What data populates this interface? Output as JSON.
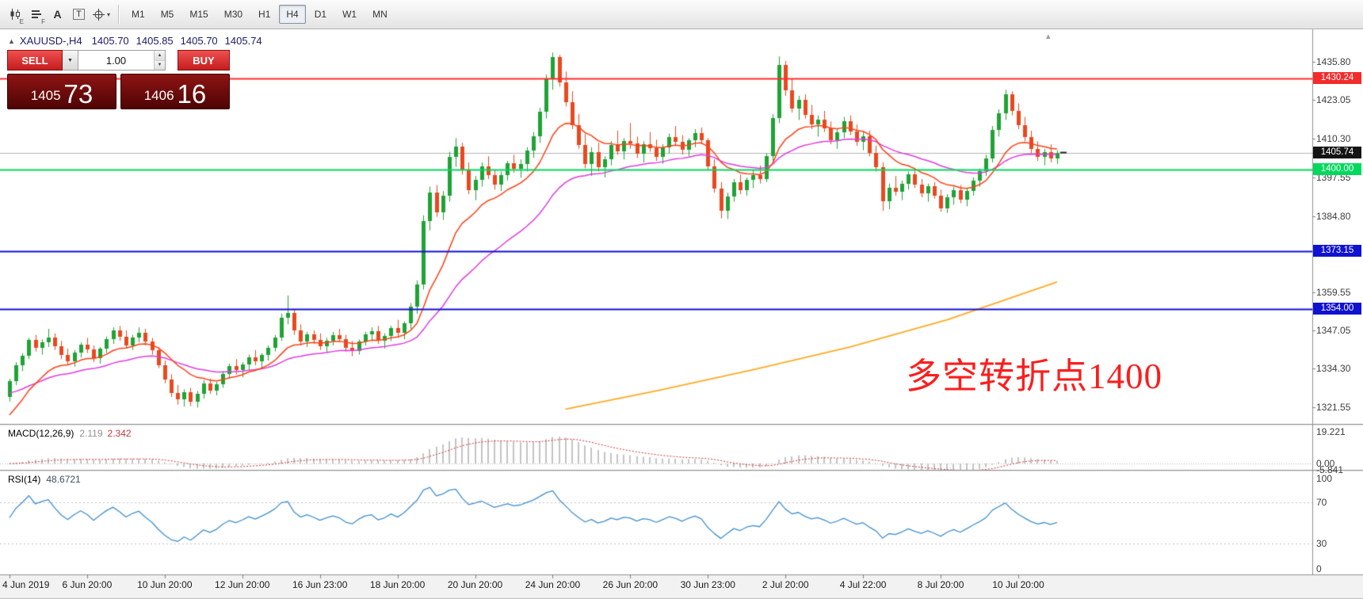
{
  "toolbar": {
    "icon_buttons": [
      {
        "name": "candlestick-chart-icon",
        "badge": "E"
      },
      {
        "name": "chart-list-icon",
        "badge": "F"
      },
      {
        "name": "text-annotation-icon",
        "glyph": "A"
      },
      {
        "name": "textbox-tool-icon",
        "glyph": "T"
      },
      {
        "name": "crosshair-tool-icon",
        "caret": "▾"
      }
    ],
    "timeframes": [
      "M1",
      "M5",
      "M15",
      "M30",
      "H1",
      "H4",
      "D1",
      "W1",
      "MN"
    ],
    "active_timeframe": "H4"
  },
  "chart_header": {
    "collapse_icon": "▲",
    "symbol_period": "XAUUSD-,H4",
    "open": "1405.70",
    "high": "1405.85",
    "low": "1405.70",
    "close": "1405.74",
    "scroll_indicator": "▴"
  },
  "one_click": {
    "sell_label": "SELL",
    "buy_label": "BUY",
    "volume": "1.00",
    "dropdown_icon": "▼",
    "spinner_up": "▲",
    "spinner_down": "▼",
    "sell_big": "1405",
    "sell_pips": "73",
    "buy_big": "1406",
    "buy_pips": "16"
  },
  "price_axis": {
    "labels": [
      {
        "text": "1435.80",
        "price": 1435.8
      },
      {
        "text": "1423.05",
        "price": 1423.05
      },
      {
        "text": "1410.30",
        "price": 1410.3
      },
      {
        "text": "1397.55",
        "price": 1397.55
      },
      {
        "text": "1384.80",
        "price": 1384.8
      },
      {
        "text": "1359.55",
        "price": 1359.55
      },
      {
        "text": "1347.05",
        "price": 1347.05
      },
      {
        "text": "1334.30",
        "price": 1334.3
      },
      {
        "text": "1321.55",
        "price": 1321.55
      }
    ],
    "badges": [
      {
        "text": "1430.24",
        "price": 1430.24,
        "bg": "#f32b2b",
        "fg": "#ffffff"
      },
      {
        "text": "1405.74",
        "price": 1405.74,
        "bg": "#141414",
        "fg": "#ffffff"
      },
      {
        "text": "1400.00",
        "price": 1400.0,
        "bg": "#00d95c",
        "fg": "#ffffff"
      },
      {
        "text": "1373.15",
        "price": 1373.15,
        "bg": "#1111d2",
        "fg": "#ffffff"
      },
      {
        "text": "1354.00",
        "price": 1354.0,
        "bg": "#1111d2",
        "fg": "#ffffff"
      }
    ]
  },
  "indicators": {
    "macd": {
      "name": "MACD(12,26,9)",
      "value_main": "2.119",
      "value_signal": "2.342",
      "scale": [
        {
          "text": "19.221",
          "value": 19.221
        },
        {
          "text": "0.00",
          "value": 0
        },
        {
          "text": "-5.841",
          "value": -5.841
        }
      ]
    },
    "rsi": {
      "name": "RSI(14)",
      "value": "48.6721",
      "scale": [
        {
          "text": "100",
          "value": 100
        },
        {
          "text": "70",
          "value": 70
        },
        {
          "text": "30",
          "value": 30
        },
        {
          "text": "0",
          "value": 0
        }
      ],
      "levels": [
        70,
        30
      ]
    }
  },
  "annotation": {
    "text": "多空转折点1400",
    "color": "#fa1e1e"
  },
  "time_axis": {
    "labels": [
      "4 Jun 2019",
      "6 Jun 20:00",
      "10 Jun 20:00",
      "12 Jun 20:00",
      "16 Jun 23:00",
      "18 Jun 20:00",
      "20 Jun 20:00",
      "24 Jun 20:00",
      "26 Jun 20:00",
      "30 Jun 23:00",
      "2 Jul 20:00",
      "4 Jul 22:00",
      "8 Jul 20:00",
      "10 Jul 20:00"
    ],
    "bar_step": 12
  },
  "chart_data": {
    "type": "candlestick",
    "symbol": "XAUUSD-",
    "period": "H4",
    "price_top": 1446.46,
    "price_bottom": 1316.1,
    "bull_color": "#1fa335",
    "bear_color": "#e8491f",
    "bid": 1405.74,
    "bid_line_color": "#b4b4b4",
    "hlines": [
      {
        "price": 1430.24,
        "color": "#ff2d2d",
        "width": 2
      },
      {
        "price": 1400.0,
        "color": "#00d95c",
        "width": 2
      },
      {
        "price": 1373.15,
        "color": "#1111d2",
        "width": 2
      },
      {
        "price": 1354.0,
        "color": "#1111d2",
        "width": 2
      }
    ],
    "moving_averages": [
      {
        "name": "ma-medium",
        "color": "#e03ce0",
        "period": 30,
        "seed": 1326
      },
      {
        "name": "ma-fast",
        "color": "#ff4016",
        "period": 12,
        "seed": 1317
      }
    ],
    "ma_slow": {
      "name": "ma-slow",
      "color": "#ffaa22",
      "points": [
        [
          86,
          1321.0
        ],
        [
          100,
          1327.0
        ],
        [
          115,
          1334.0
        ],
        [
          130,
          1341.5
        ],
        [
          145,
          1350.5
        ],
        [
          162,
          1363.0
        ]
      ]
    },
    "macd_colors": {
      "histogram": "#c4c4c4",
      "signal": "#d23333"
    },
    "rsi_color": "#3f8fd0",
    "candles": [
      [
        1325.0,
        1331.0,
        1323.5,
        1330.2
      ],
      [
        1330.2,
        1336.5,
        1329.0,
        1335.4
      ],
      [
        1335.4,
        1339.5,
        1333.5,
        1338.6
      ],
      [
        1338.6,
        1344.5,
        1337.5,
        1343.8
      ],
      [
        1343.8,
        1345.5,
        1340.0,
        1341.2
      ],
      [
        1341.2,
        1344.0,
        1339.0,
        1343.1
      ],
      [
        1343.1,
        1347.5,
        1341.5,
        1344.6
      ],
      [
        1344.6,
        1346.0,
        1340.5,
        1341.7
      ],
      [
        1341.7,
        1343.5,
        1337.5,
        1338.9
      ],
      [
        1338.9,
        1341.0,
        1335.5,
        1336.8
      ],
      [
        1336.8,
        1340.5,
        1335.0,
        1339.7
      ],
      [
        1339.7,
        1343.0,
        1338.0,
        1342.2
      ],
      [
        1342.2,
        1344.5,
        1339.5,
        1340.6
      ],
      [
        1340.6,
        1342.0,
        1336.5,
        1337.8
      ],
      [
        1337.8,
        1341.5,
        1336.0,
        1340.9
      ],
      [
        1340.9,
        1345.0,
        1339.5,
        1344.2
      ],
      [
        1344.2,
        1348.0,
        1342.5,
        1346.9
      ],
      [
        1346.9,
        1348.5,
        1343.5,
        1344.8
      ],
      [
        1344.8,
        1347.0,
        1341.0,
        1342.1
      ],
      [
        1342.1,
        1345.5,
        1340.5,
        1344.6
      ],
      [
        1344.6,
        1348.0,
        1343.0,
        1346.3
      ],
      [
        1346.3,
        1347.5,
        1342.0,
        1343.2
      ],
      [
        1343.2,
        1344.5,
        1339.0,
        1340.4
      ],
      [
        1340.4,
        1341.5,
        1334.5,
        1335.6
      ],
      [
        1335.6,
        1337.0,
        1329.5,
        1330.7
      ],
      [
        1330.7,
        1332.5,
        1325.0,
        1326.2
      ],
      [
        1326.2,
        1329.0,
        1322.5,
        1324.1
      ],
      [
        1324.1,
        1327.5,
        1321.8,
        1326.6
      ],
      [
        1326.6,
        1328.0,
        1322.0,
        1323.3
      ],
      [
        1323.3,
        1327.0,
        1321.5,
        1326.1
      ],
      [
        1326.1,
        1330.5,
        1324.5,
        1329.4
      ],
      [
        1329.4,
        1331.0,
        1326.0,
        1327.2
      ],
      [
        1327.2,
        1330.0,
        1325.5,
        1329.1
      ],
      [
        1329.1,
        1333.5,
        1328.0,
        1332.6
      ],
      [
        1332.6,
        1336.0,
        1331.0,
        1335.2
      ],
      [
        1335.2,
        1337.5,
        1332.5,
        1333.8
      ],
      [
        1333.8,
        1336.5,
        1331.5,
        1335.7
      ],
      [
        1335.7,
        1339.0,
        1334.0,
        1338.1
      ],
      [
        1338.1,
        1340.5,
        1335.5,
        1336.7
      ],
      [
        1336.7,
        1339.5,
        1334.5,
        1338.8
      ],
      [
        1338.8,
        1342.0,
        1337.0,
        1341.3
      ],
      [
        1341.3,
        1345.5,
        1340.0,
        1344.7
      ],
      [
        1344.7,
        1352.5,
        1343.5,
        1351.2
      ],
      [
        1351.2,
        1358.5,
        1349.0,
        1352.8
      ],
      [
        1352.8,
        1354.0,
        1345.5,
        1346.9
      ],
      [
        1346.9,
        1349.0,
        1342.0,
        1343.4
      ],
      [
        1343.4,
        1346.5,
        1341.5,
        1345.6
      ],
      [
        1345.6,
        1347.0,
        1342.5,
        1343.9
      ],
      [
        1343.9,
        1346.0,
        1340.5,
        1341.8
      ],
      [
        1341.8,
        1344.5,
        1339.5,
        1343.6
      ],
      [
        1343.6,
        1346.5,
        1342.0,
        1345.3
      ],
      [
        1345.3,
        1347.5,
        1343.0,
        1344.1
      ],
      [
        1344.1,
        1345.5,
        1340.0,
        1341.3
      ],
      [
        1341.3,
        1343.5,
        1338.5,
        1340.2
      ],
      [
        1340.2,
        1344.0,
        1339.0,
        1343.4
      ],
      [
        1343.4,
        1346.5,
        1342.0,
        1345.8
      ],
      [
        1345.8,
        1348.0,
        1343.5,
        1346.6
      ],
      [
        1346.6,
        1348.5,
        1342.5,
        1343.7
      ],
      [
        1343.7,
        1346.0,
        1341.0,
        1345.1
      ],
      [
        1345.1,
        1348.5,
        1343.5,
        1347.9
      ],
      [
        1347.9,
        1350.5,
        1344.5,
        1346.2
      ],
      [
        1346.2,
        1350.0,
        1344.0,
        1349.3
      ],
      [
        1349.3,
        1356.0,
        1347.5,
        1354.9
      ],
      [
        1354.9,
        1363.5,
        1352.5,
        1362.1
      ],
      [
        1362.1,
        1385.0,
        1360.5,
        1383.2
      ],
      [
        1383.2,
        1394.5,
        1380.0,
        1392.6
      ],
      [
        1392.6,
        1395.0,
        1384.5,
        1386.1
      ],
      [
        1386.1,
        1393.0,
        1383.5,
        1391.4
      ],
      [
        1391.4,
        1406.0,
        1389.5,
        1404.2
      ],
      [
        1404.2,
        1410.5,
        1401.0,
        1407.8
      ],
      [
        1407.8,
        1409.0,
        1398.5,
        1399.9
      ],
      [
        1399.9,
        1402.5,
        1392.0,
        1393.3
      ],
      [
        1393.3,
        1398.0,
        1390.0,
        1396.7
      ],
      [
        1396.7,
        1402.5,
        1394.5,
        1401.3
      ],
      [
        1401.3,
        1404.5,
        1397.0,
        1398.2
      ],
      [
        1398.2,
        1400.0,
        1393.5,
        1395.1
      ],
      [
        1395.1,
        1399.5,
        1393.0,
        1398.4
      ],
      [
        1398.4,
        1403.0,
        1396.5,
        1402.2
      ],
      [
        1402.2,
        1405.0,
        1399.0,
        1400.3
      ],
      [
        1400.3,
        1403.5,
        1397.5,
        1401.9
      ],
      [
        1401.9,
        1407.5,
        1399.5,
        1406.4
      ],
      [
        1406.4,
        1412.5,
        1404.0,
        1411.2
      ],
      [
        1411.2,
        1420.5,
        1409.0,
        1419.3
      ],
      [
        1419.3,
        1431.5,
        1417.0,
        1430.1
      ],
      [
        1430.1,
        1438.8,
        1426.5,
        1437.2
      ],
      [
        1437.2,
        1438.0,
        1427.5,
        1428.9
      ],
      [
        1428.9,
        1432.5,
        1421.0,
        1422.4
      ],
      [
        1422.4,
        1426.0,
        1413.5,
        1414.8
      ],
      [
        1414.8,
        1418.5,
        1407.0,
        1408.3
      ],
      [
        1408.3,
        1412.0,
        1400.5,
        1402.0
      ],
      [
        1402.0,
        1407.5,
        1398.0,
        1405.9
      ],
      [
        1405.9,
        1409.0,
        1399.5,
        1400.8
      ],
      [
        1400.8,
        1404.5,
        1397.5,
        1403.4
      ],
      [
        1403.4,
        1409.5,
        1401.5,
        1408.2
      ],
      [
        1408.2,
        1413.0,
        1405.0,
        1406.1
      ],
      [
        1406.1,
        1410.5,
        1403.5,
        1409.6
      ],
      [
        1409.6,
        1415.5,
        1407.0,
        1408.7
      ],
      [
        1408.7,
        1411.0,
        1404.0,
        1405.3
      ],
      [
        1405.3,
        1409.5,
        1402.5,
        1408.4
      ],
      [
        1408.4,
        1412.5,
        1406.0,
        1407.2
      ],
      [
        1407.2,
        1410.0,
        1403.0,
        1404.4
      ],
      [
        1404.4,
        1408.5,
        1402.0,
        1407.5
      ],
      [
        1407.5,
        1412.0,
        1405.5,
        1410.8
      ],
      [
        1410.8,
        1414.5,
        1408.0,
        1409.4
      ],
      [
        1409.4,
        1411.5,
        1405.0,
        1406.6
      ],
      [
        1406.6,
        1410.5,
        1404.5,
        1409.8
      ],
      [
        1409.8,
        1413.5,
        1407.5,
        1412.1
      ],
      [
        1412.1,
        1414.0,
        1408.5,
        1409.7
      ],
      [
        1409.7,
        1410.5,
        1400.0,
        1401.2
      ],
      [
        1401.2,
        1403.5,
        1392.5,
        1393.8
      ],
      [
        1393.8,
        1396.0,
        1384.0,
        1386.4
      ],
      [
        1386.4,
        1392.5,
        1383.8,
        1391.1
      ],
      [
        1391.1,
        1397.0,
        1389.5,
        1395.9
      ],
      [
        1395.9,
        1398.5,
        1392.0,
        1393.4
      ],
      [
        1393.4,
        1397.5,
        1391.5,
        1396.8
      ],
      [
        1396.8,
        1400.0,
        1394.0,
        1398.3
      ],
      [
        1398.3,
        1401.5,
        1395.5,
        1397.1
      ],
      [
        1397.1,
        1405.5,
        1396.0,
        1404.6
      ],
      [
        1404.6,
        1418.5,
        1403.0,
        1417.2
      ],
      [
        1417.2,
        1437.5,
        1415.5,
        1434.8
      ],
      [
        1434.8,
        1436.0,
        1424.5,
        1426.3
      ],
      [
        1426.3,
        1430.0,
        1419.0,
        1420.4
      ],
      [
        1420.4,
        1424.5,
        1416.5,
        1423.1
      ],
      [
        1423.1,
        1425.0,
        1417.0,
        1418.2
      ],
      [
        1418.2,
        1421.5,
        1413.5,
        1415.0
      ],
      [
        1415.0,
        1418.0,
        1411.0,
        1416.6
      ],
      [
        1416.6,
        1419.5,
        1412.5,
        1413.7
      ],
      [
        1413.7,
        1416.0,
        1408.5,
        1409.9
      ],
      [
        1409.9,
        1413.5,
        1407.0,
        1412.4
      ],
      [
        1412.4,
        1417.5,
        1410.5,
        1416.1
      ],
      [
        1416.1,
        1418.0,
        1411.5,
        1412.7
      ],
      [
        1412.7,
        1415.0,
        1408.0,
        1409.3
      ],
      [
        1409.3,
        1412.5,
        1406.5,
        1411.0
      ],
      [
        1411.0,
        1413.0,
        1404.5,
        1405.7
      ],
      [
        1405.7,
        1408.0,
        1399.5,
        1400.9
      ],
      [
        1400.9,
        1402.5,
        1386.5,
        1389.6
      ],
      [
        1389.6,
        1395.5,
        1387.0,
        1394.2
      ],
      [
        1394.2,
        1398.0,
        1391.5,
        1392.8
      ],
      [
        1392.8,
        1396.5,
        1390.0,
        1395.4
      ],
      [
        1395.4,
        1399.5,
        1393.5,
        1398.6
      ],
      [
        1398.6,
        1400.5,
        1394.0,
        1395.1
      ],
      [
        1395.1,
        1397.0,
        1391.0,
        1392.3
      ],
      [
        1392.3,
        1395.5,
        1389.5,
        1394.7
      ],
      [
        1394.7,
        1396.0,
        1390.5,
        1391.6
      ],
      [
        1391.6,
        1393.5,
        1386.2,
        1387.4
      ],
      [
        1387.4,
        1392.0,
        1385.8,
        1390.9
      ],
      [
        1390.9,
        1394.5,
        1388.5,
        1393.2
      ],
      [
        1393.2,
        1395.0,
        1389.0,
        1390.1
      ],
      [
        1390.1,
        1394.0,
        1388.0,
        1393.1
      ],
      [
        1393.1,
        1397.5,
        1391.5,
        1396.4
      ],
      [
        1396.4,
        1400.5,
        1394.5,
        1399.7
      ],
      [
        1399.7,
        1405.0,
        1398.0,
        1403.9
      ],
      [
        1403.9,
        1414.5,
        1402.5,
        1413.2
      ],
      [
        1413.2,
        1420.0,
        1411.0,
        1418.8
      ],
      [
        1418.8,
        1426.5,
        1416.5,
        1424.9
      ],
      [
        1424.9,
        1426.0,
        1418.0,
        1419.5
      ],
      [
        1419.5,
        1422.0,
        1413.5,
        1414.7
      ],
      [
        1414.7,
        1417.5,
        1409.5,
        1410.8
      ],
      [
        1410.8,
        1413.0,
        1405.5,
        1406.9
      ],
      [
        1406.9,
        1409.5,
        1403.0,
        1404.2
      ],
      [
        1404.2,
        1407.0,
        1401.5,
        1405.8
      ],
      [
        1405.8,
        1408.5,
        1402.5,
        1403.9
      ],
      [
        1403.9,
        1406.5,
        1402.0,
        1405.74
      ]
    ]
  }
}
